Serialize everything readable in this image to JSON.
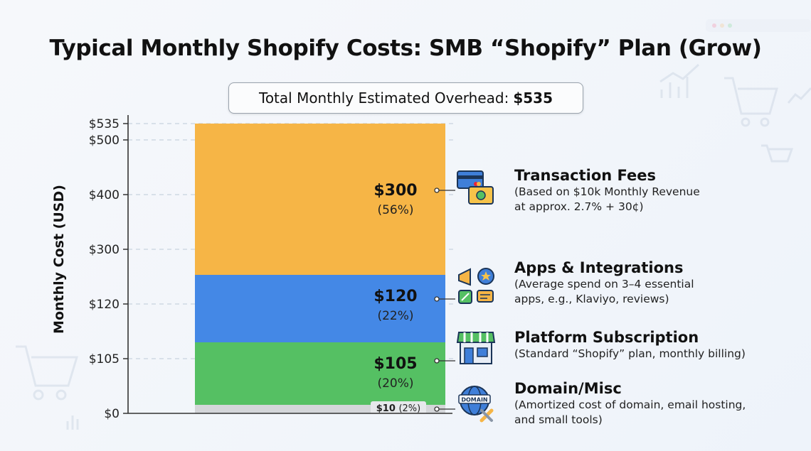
{
  "title": "Typical Monthly Shopify Costs: SMB “Shopify” Plan (Grow)",
  "total": {
    "label": "Total Monthly Estimated Overhead:",
    "value": "$535"
  },
  "colors": {
    "transaction": "#f6b546",
    "apps": "#4488e6",
    "platform": "#55c063",
    "domain": "#d4d6d9"
  },
  "chart_data": {
    "type": "bar",
    "stacked": true,
    "title": "Typical Monthly Shopify Costs: SMB “Shopify” Plan (Grow)",
    "ylabel": "Monthly Cost (USD)",
    "ytick_labels": [
      "$0",
      "$105",
      "$120",
      "$300",
      "$400",
      "$500",
      "$535"
    ],
    "ylim": [
      0,
      535
    ],
    "grid": "dashed horizontal",
    "segments": [
      {
        "name": "Domain/Misc",
        "value": 10,
        "value_label": "$10",
        "percent_label": "(2%)"
      },
      {
        "name": "Platform Subscription",
        "value": 105,
        "value_label": "$105",
        "percent_label": "(20%)"
      },
      {
        "name": "Apps & Integrations",
        "value": 120,
        "value_label": "$120",
        "percent_label": "(22%)"
      },
      {
        "name": "Transaction Fees",
        "value": 300,
        "value_label": "$300",
        "percent_label": "(56%)"
      }
    ]
  },
  "categories": [
    {
      "title": "Transaction Fees",
      "desc": "(Based on $10k Monthly Revenue\nat approx. 2.7% + 30¢)",
      "icon": "credit-card-cash-icon"
    },
    {
      "title": "Apps & Integrations",
      "desc": "(Average spend on 3–4 essential\napps, e.g., Klaviyo, reviews)",
      "icon": "apps-icon"
    },
    {
      "title": "Platform Subscription",
      "desc": "(Standard “Shopify” plan, monthly billing)",
      "icon": "storefront-icon"
    },
    {
      "title": "Domain/Misc",
      "desc": "(Amortized cost of domain, email hosting,\nand small tools)",
      "icon": "domain-globe-tools-icon"
    }
  ]
}
